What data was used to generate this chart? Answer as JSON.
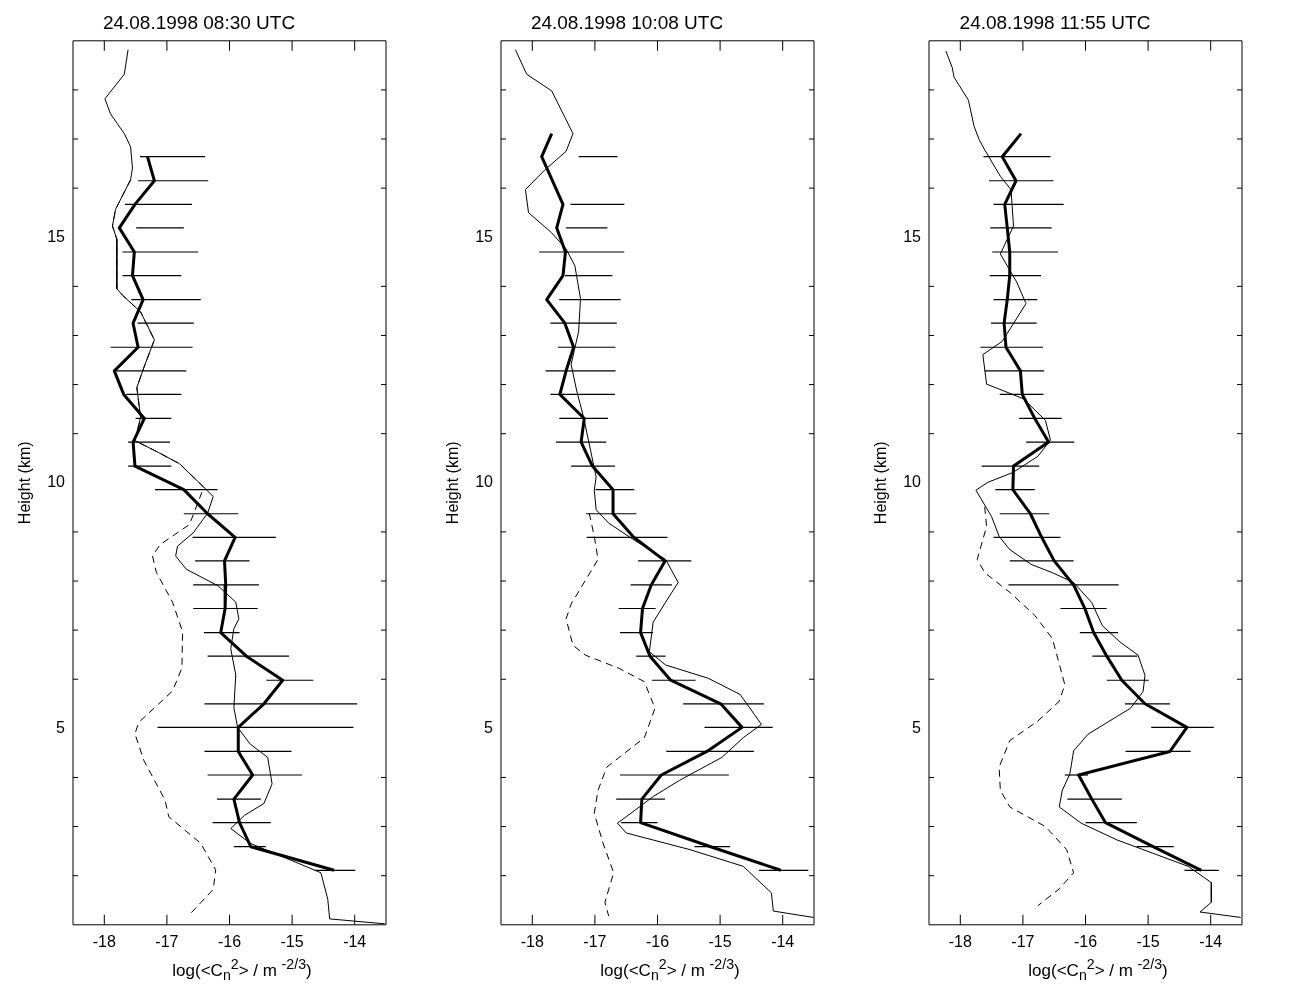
{
  "chart_data": [
    {
      "type": "line",
      "title": "24.08.1998 08:30 UTC",
      "xlabel": "log(<C$_{n}$$^{2}$> / m $^{-2/3}$)",
      "ylabel": "Height (km)",
      "xlim": [
        -18.5,
        -13.5
      ],
      "ylim": [
        1,
        19
      ],
      "xticks": [
        -18,
        -17,
        -16,
        -15,
        -14
      ],
      "yticks": [
        {
          "value": 2,
          "label": null
        },
        {
          "value": 3,
          "label": null
        },
        {
          "value": 4,
          "label": null
        },
        5,
        {
          "value": 6,
          "label": null
        },
        {
          "value": 7,
          "label": null
        },
        {
          "value": 8,
          "label": null
        },
        {
          "value": 9,
          "label": null
        },
        10,
        {
          "value": 11,
          "label": null
        },
        {
          "value": 12,
          "label": null
        },
        {
          "value": 13,
          "label": null
        },
        {
          "value": 14,
          "label": null
        },
        15,
        {
          "value": 16,
          "label": null
        },
        {
          "value": 17,
          "label": null
        },
        {
          "value": 18,
          "label": null
        }
      ],
      "marker": "none",
      "series": [
        {
          "color": "#000000",
          "x": [
            -17.31,
            -17.2,
            -17.51,
            -17.76,
            -17.52,
            -17.55,
            -17.38,
            -17.54,
            -17.46,
            -17.84,
            -17.69,
            -17.36,
            -17.54,
            -17.51,
            -16.73,
            -16.35,
            -15.91,
            -16.08,
            -16.06,
            -16.07,
            -16.14,
            -15.73,
            -15.15,
            -15.45,
            -15.86,
            -15.86,
            -15.63,
            -15.93,
            -15.84,
            -15.66,
            -14.33
          ],
          "values": [
            16.64,
            16.15,
            15.67,
            15.19,
            14.7,
            14.22,
            13.73,
            13.25,
            12.76,
            12.28,
            11.8,
            11.31,
            10.83,
            10.34,
            9.86,
            9.37,
            8.89,
            8.41,
            7.92,
            7.44,
            6.95,
            6.47,
            5.98,
            5.5,
            5.02,
            4.53,
            4.05,
            3.56,
            3.08,
            2.59,
            2.11
          ],
          "xerrors": [
            [
              -17.43,
              -16.39
            ],
            [
              -17.46,
              -16.34
            ],
            [
              -17.67,
              -16.6
            ],
            [
              -17.49,
              -16.73
            ],
            [
              -17.71,
              -16.5
            ],
            [
              -17.71,
              -16.77
            ],
            [
              -17.57,
              -16.46
            ],
            [
              -17.47,
              -16.57
            ],
            [
              -17.9,
              -16.59
            ],
            [
              -17.84,
              -16.69
            ],
            [
              -17.65,
              -16.77
            ],
            [
              -17.5,
              -16.93
            ],
            [
              -17.62,
              -16.95
            ],
            [
              -17.62,
              -16.93
            ],
            [
              -17.19,
              -16.19
            ],
            [
              -16.73,
              -15.86
            ],
            [
              -16.59,
              -15.26
            ],
            [
              -16.55,
              -15.68
            ],
            [
              -16.58,
              -15.53
            ],
            [
              -16.58,
              -15.55
            ],
            [
              -16.41,
              -15.84
            ],
            [
              -16.35,
              -15.05
            ],
            [
              -15.41,
              -14.66
            ],
            [
              -16.4,
              -13.96
            ],
            [
              -17.15,
              -14.02
            ],
            [
              -16.4,
              -15.01
            ],
            [
              -16.35,
              -14.84
            ],
            [
              -16.2,
              -15.5
            ],
            [
              -16.27,
              -15.34
            ],
            [
              -15.93,
              -15.42
            ],
            [
              -14.64,
              -13.99
            ]
          ]
        },
        {
          "color": "#000000",
          "x": [
            -17.62,
            -17.68,
            -17.99,
            -17.9,
            -17.68,
            -17.58,
            -17.55,
            -17.58,
            -17.82,
            -17.87,
            -17.8,
            -17.8,
            -17.71,
            -17.42,
            -17.2,
            -17.37,
            -17.48,
            -17.42,
            -17.51,
            -17.14,
            -16.8,
            -16.41,
            -16.26,
            -16.35,
            -16.58,
            -16.83,
            -16.86,
            -16.69,
            -16.18,
            -15.9,
            -15.85,
            -15.93,
            -15.98,
            -15.9,
            -15.93,
            -15.87,
            -15.67,
            -15.39,
            -15.32,
            -15.45,
            -15.76,
            -15.98,
            -15.67,
            -15.16,
            -14.54,
            -14.43,
            -14.4,
            -13.52
          ],
          "values": [
            18.82,
            18.32,
            17.82,
            17.51,
            17.11,
            16.84,
            16.41,
            16.17,
            15.57,
            15.23,
            14.96,
            13.95,
            13.82,
            13.48,
            12.91,
            12.34,
            11.94,
            11.33,
            10.86,
            10.62,
            10.39,
            9.91,
            9.72,
            9.38,
            8.98,
            8.71,
            8.51,
            8.24,
            7.9,
            7.57,
            7.23,
            7.03,
            6.62,
            6.09,
            5.42,
            5.02,
            4.68,
            4.41,
            3.87,
            3.47,
            3.23,
            2.96,
            2.66,
            2.39,
            2.06,
            1.52,
            1.12,
            1.02
          ]
        },
        {
          "color": "#000000",
          "line_style": "dashed",
          "x": [
            -17.58,
            -17.82,
            -17.87,
            -17.8,
            -17.8,
            -17.71,
            -17.42,
            -17.2,
            -17.37,
            -17.48,
            -17.42,
            -17.51,
            -17.14,
            -16.8,
            -16.41,
            -16.64,
            -17.11,
            -17.23,
            -17.17,
            -16.91,
            -16.75,
            -16.76,
            -16.91,
            -17.45,
            -17.51,
            -17.37,
            -17.03,
            -16.97,
            -16.46,
            -16.22,
            -16.26,
            -16.66
          ],
          "values": [
            16.17,
            15.57,
            15.23,
            14.96,
            13.95,
            13.82,
            13.48,
            12.91,
            12.34,
            11.94,
            11.33,
            10.86,
            10.62,
            10.39,
            9.91,
            9.15,
            8.74,
            8.51,
            8.18,
            7.57,
            6.97,
            6.23,
            5.76,
            5.12,
            4.89,
            4.35,
            3.54,
            3.2,
            2.66,
            2.12,
            1.72,
            1.18
          ]
        }
      ]
    },
    {
      "type": "line",
      "title": "24.08.1998 10:08 UTC",
      "xlabel": "log(<C$_{n}$$^{2}$> / m $^{-2/3}$)",
      "ylabel": "Height (km)",
      "xlim": [
        -18.5,
        -13.5
      ],
      "ylim": [
        1,
        19
      ],
      "xticks": [
        -18,
        -17,
        -16,
        -15,
        -14
      ],
      "yticks": [
        {
          "value": 2,
          "label": null
        },
        {
          "value": 3,
          "label": null
        },
        {
          "value": 4,
          "label": null
        },
        5,
        {
          "value": 6,
          "label": null
        },
        {
          "value": 7,
          "label": null
        },
        {
          "value": 8,
          "label": null
        },
        {
          "value": 9,
          "label": null
        },
        10,
        {
          "value": 11,
          "label": null
        },
        {
          "value": 12,
          "label": null
        },
        {
          "value": 13,
          "label": null
        },
        {
          "value": 14,
          "label": null
        },
        15,
        {
          "value": 16,
          "label": null
        },
        {
          "value": 17,
          "label": null
        },
        {
          "value": 18,
          "label": null
        }
      ],
      "marker": "none",
      "series": [
        {
          "color": "#000000",
          "x": [
            -17.69,
            -17.85,
            -17.51,
            -17.61,
            -17.47,
            -17.51,
            -17.77,
            -17.48,
            -17.34,
            -17.46,
            -17.56,
            -17.17,
            -17.22,
            -17.04,
            -16.71,
            -16.71,
            -16.38,
            -15.88,
            -16.1,
            -16.24,
            -16.27,
            -16.12,
            -15.79,
            -14.99,
            -14.65,
            -15.21,
            -15.94,
            -16.25,
            -16.27,
            -15.15,
            -14.03
          ],
          "values": [
            17.11,
            16.64,
            15.67,
            15.19,
            14.7,
            14.22,
            13.73,
            13.25,
            12.76,
            12.28,
            11.8,
            11.31,
            10.83,
            10.34,
            9.86,
            9.37,
            8.89,
            8.41,
            7.92,
            7.44,
            6.95,
            6.47,
            5.98,
            5.5,
            5.02,
            4.53,
            4.05,
            3.56,
            3.08,
            2.59,
            2.11
          ],
          "xerrors": [
            null,
            [
              -17.26,
              -16.64
            ],
            [
              -17.39,
              -16.53
            ],
            [
              -17.46,
              -16.8
            ],
            [
              -17.89,
              -16.53
            ],
            [
              -17.48,
              -16.72
            ],
            [
              -17.57,
              -16.59
            ],
            [
              -17.71,
              -16.65
            ],
            [
              -17.59,
              -16.67
            ],
            [
              -17.79,
              -16.67
            ],
            [
              -17.71,
              -16.68
            ],
            [
              -17.57,
              -16.79
            ],
            [
              -17.62,
              -16.82
            ],
            [
              -17.38,
              -16.68
            ],
            [
              -16.99,
              -16.37
            ],
            [
              -17.14,
              -16.34
            ],
            [
              -17.13,
              -15.84
            ],
            [
              -16.31,
              -15.46
            ],
            [
              -16.43,
              -15.77
            ],
            [
              -16.62,
              -16.03
            ],
            [
              -16.6,
              -16.07
            ],
            [
              -16.34,
              -15.87
            ],
            [
              -16.09,
              -15.39
            ],
            [
              -15.59,
              -14.3
            ],
            [
              -15.25,
              -14.16
            ],
            [
              -15.86,
              -14.46
            ],
            [
              -16.6,
              -14.86
            ],
            [
              -16.66,
              -15.88
            ],
            [
              -16.58,
              -16.0
            ],
            [
              -15.41,
              -14.84
            ],
            [
              -14.38,
              -13.59
            ]
          ]
        },
        {
          "color": "#000000",
          "x": [
            -18.27,
            -18.09,
            -17.69,
            -17.35,
            -17.46,
            -17.8,
            -18.11,
            -18.06,
            -17.69,
            -17.46,
            -17.32,
            -17.23,
            -17.26,
            -17.38,
            -17.29,
            -17.18,
            -16.98,
            -17.01,
            -16.98,
            -16.78,
            -16.38,
            -15.87,
            -15.67,
            -15.87,
            -16.07,
            -16.13,
            -15.87,
            -15.19,
            -14.68,
            -14.45,
            -14.34,
            -14.63,
            -14.97,
            -15.65,
            -16.07,
            -16.5,
            -16.64,
            -16.5,
            -15.48,
            -14.63,
            -14.18,
            -14.15,
            -13.51
          ],
          "values": [
            18.82,
            18.32,
            17.98,
            17.11,
            16.75,
            16.37,
            15.97,
            15.5,
            15.09,
            14.76,
            14.42,
            13.75,
            13.08,
            12.41,
            11.87,
            11.33,
            10.12,
            9.85,
            9.45,
            9.18,
            8.84,
            8.44,
            7.97,
            7.57,
            7.16,
            6.56,
            6.29,
            6.02,
            5.69,
            5.28,
            5.08,
            4.81,
            4.41,
            3.94,
            3.61,
            3.2,
            3.07,
            2.87,
            2.53,
            2.19,
            1.65,
            1.28,
            1.15
          ]
        },
        {
          "color": "#000000",
          "line_style": "dashed",
          "x": [
            -17.09,
            -17.01,
            -16.95,
            -17.38,
            -17.46,
            -17.35,
            -17.15,
            -16.61,
            -16.21,
            -16.04,
            -16.21,
            -16.81,
            -16.95,
            -17.01,
            -16.87,
            -16.7,
            -16.84,
            -16.78
          ],
          "values": [
            9.38,
            8.91,
            8.44,
            7.53,
            7.23,
            6.69,
            6.49,
            6.22,
            5.95,
            5.41,
            4.81,
            4.21,
            3.74,
            3.27,
            2.66,
            2.06,
            1.46,
            1.18
          ]
        }
      ]
    },
    {
      "type": "line",
      "title": "24.08.1998 11:55 UTC",
      "xlabel": "log(<C$_{n}$$^{2}$> / m $^{-2/3}$)",
      "ylabel": "Height (km)",
      "xlim": [
        -18.5,
        -13.5
      ],
      "ylim": [
        1,
        19
      ],
      "xticks": [
        -18,
        -17,
        -16,
        -15,
        -14
      ],
      "yticks": [
        {
          "value": 2,
          "label": null
        },
        {
          "value": 3,
          "label": null
        },
        {
          "value": 4,
          "label": null
        },
        5,
        {
          "value": 6,
          "label": null
        },
        {
          "value": 7,
          "label": null
        },
        {
          "value": 8,
          "label": null
        },
        {
          "value": 9,
          "label": null
        },
        10,
        {
          "value": 11,
          "label": null
        },
        {
          "value": 12,
          "label": null
        },
        {
          "value": 13,
          "label": null
        },
        {
          "value": 14,
          "label": null
        },
        15,
        {
          "value": 16,
          "label": null
        },
        {
          "value": 17,
          "label": null
        },
        {
          "value": 18,
          "label": null
        }
      ],
      "marker": "none",
      "series": [
        {
          "color": "#000000",
          "x": [
            -17.03,
            -17.33,
            -17.11,
            -17.29,
            -17.25,
            -17.21,
            -17.21,
            -17.25,
            -17.3,
            -17.27,
            -17.04,
            -17.01,
            -16.81,
            -16.59,
            -17.15,
            -17.16,
            -16.88,
            -16.7,
            -16.5,
            -16.19,
            -16.01,
            -15.87,
            -15.66,
            -15.42,
            -15.05,
            -14.38,
            -14.65,
            -16.11,
            -15.9,
            -15.68,
            -14.92,
            -14.15
          ],
          "values": [
            17.11,
            16.64,
            16.15,
            15.67,
            15.19,
            14.7,
            14.22,
            13.73,
            13.25,
            12.76,
            12.28,
            11.8,
            11.31,
            10.83,
            10.34,
            9.86,
            9.37,
            8.89,
            8.41,
            7.92,
            7.44,
            6.95,
            6.47,
            5.98,
            5.5,
            5.02,
            4.53,
            4.05,
            3.56,
            3.08,
            2.59,
            2.11
          ],
          "xerrors": [
            null,
            [
              -17.63,
              -16.56
            ],
            [
              -17.54,
              -16.51
            ],
            [
              -17.47,
              -16.35
            ],
            [
              -17.52,
              -16.54
            ],
            [
              -17.49,
              -16.44
            ],
            [
              -17.53,
              -16.71
            ],
            [
              -17.47,
              -16.77
            ],
            [
              -17.51,
              -16.78
            ],
            [
              -17.68,
              -16.68
            ],
            [
              -17.61,
              -16.66
            ],
            [
              -17.37,
              -16.67
            ],
            [
              -17.06,
              -16.38
            ],
            [
              -16.95,
              -16.18
            ],
            [
              -17.66,
              -16.74
            ],
            [
              -17.44,
              -16.81
            ],
            [
              -17.37,
              -16.58
            ],
            [
              -17.47,
              -16.4
            ],
            [
              -17.21,
              -16.19
            ],
            [
              -17.23,
              -15.47
            ],
            [
              -16.4,
              -15.66
            ],
            [
              -16.09,
              -15.48
            ],
            [
              -15.89,
              -15.17
            ],
            [
              -15.66,
              -14.99
            ],
            [
              -15.37,
              -14.65
            ],
            [
              -14.95,
              -13.95
            ],
            [
              -15.36,
              -14.32
            ],
            [
              -16.33,
              -15.96
            ],
            [
              -16.29,
              -15.42
            ],
            [
              -16.0,
              -15.18
            ],
            [
              -15.18,
              -14.59
            ],
            [
              -14.42,
              -13.87
            ]
          ]
        },
        {
          "color": "#000000",
          "x": [
            -18.23,
            -18.13,
            -18.1,
            -17.87,
            -17.78,
            -17.7,
            -17.61,
            -17.36,
            -17.19,
            -17.15,
            -17.36,
            -17.1,
            -16.95,
            -17.33,
            -17.64,
            -17.58,
            -16.99,
            -16.64,
            -16.56,
            -16.76,
            -17.16,
            -17.56,
            -17.75,
            -17.5,
            -17.38,
            -17.21,
            -16.87,
            -16.53,
            -16.19,
            -15.9,
            -15.73,
            -15.45,
            -15.16,
            -15.05,
            -15.08,
            -15.28,
            -15.5,
            -15.96,
            -16.19,
            -16.25,
            -16.37,
            -16.42,
            -16.07,
            -15.5,
            -14.93,
            -14.36,
            -13.99,
            -13.99,
            -14.17,
            -13.52
          ],
          "values": [
            18.79,
            18.46,
            18.26,
            17.79,
            17.26,
            16.99,
            16.78,
            16.24,
            15.97,
            15.23,
            14.66,
            14.09,
            13.65,
            12.88,
            12.61,
            12.01,
            11.71,
            11.27,
            10.87,
            10.54,
            10.21,
            10.01,
            9.85,
            9.31,
            8.91,
            8.64,
            8.34,
            8.17,
            7.97,
            7.56,
            7.09,
            6.76,
            6.49,
            6.08,
            5.75,
            5.41,
            5.24,
            4.88,
            4.54,
            4.07,
            3.74,
            3.4,
            3.07,
            2.73,
            2.46,
            2.19,
            1.86,
            1.46,
            1.26,
            1.15
          ]
        },
        {
          "color": "#000000",
          "line_style": "dashed",
          "x": [
            -17.61,
            -17.58,
            -17.73,
            -17.61,
            -17.21,
            -16.81,
            -16.53,
            -16.33,
            -16.42,
            -16.76,
            -17.21,
            -17.38,
            -17.36,
            -17.21,
            -16.64,
            -16.3,
            -16.19,
            -16.42,
            -16.76
          ],
          "values": [
            9.51,
            9.11,
            8.44,
            8.17,
            7.77,
            7.3,
            6.83,
            5.89,
            5.55,
            5.15,
            4.75,
            4.21,
            3.74,
            3.4,
            3.0,
            2.53,
            2.06,
            1.73,
            1.39
          ]
        }
      ]
    }
  ]
}
